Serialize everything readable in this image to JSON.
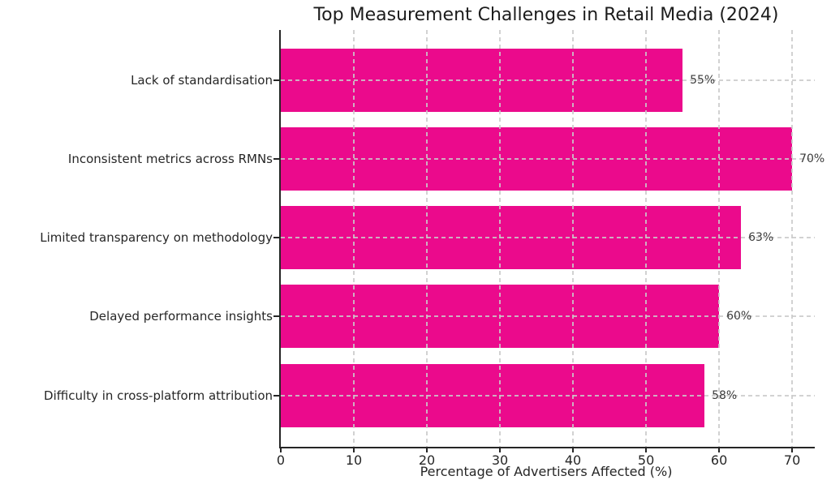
{
  "colors": {
    "bar": "#EB0A8C",
    "grid": "#CACACA",
    "axis": "#262626",
    "text": "#262626",
    "value_text": "#3A3A3A",
    "background": "#FFFFFF"
  },
  "chart_data": {
    "type": "bar",
    "orientation": "horizontal",
    "title": "Top Measurement Challenges in Retail Media (2024)",
    "xlabel": "Percentage of Advertisers Affected (%)",
    "ylabel": "",
    "categories": [
      "Lack of standardisation",
      "Inconsistent metrics across RMNs",
      "Limited transparency on methodology",
      "Delayed performance insights",
      "Difficulty in cross-platform attribution"
    ],
    "values": [
      55,
      70,
      63,
      60,
      58
    ],
    "value_labels": [
      "55%",
      "70%",
      "63%",
      "60%",
      "58%"
    ],
    "xticks": [
      0,
      10,
      20,
      30,
      40,
      50,
      60,
      70
    ],
    "xlim": [
      0,
      73.1
    ],
    "grid": "dashed vertical gridlines at each x tick and dashed horizontal gridline at each bar center, drawn above bars",
    "legend": "none"
  }
}
